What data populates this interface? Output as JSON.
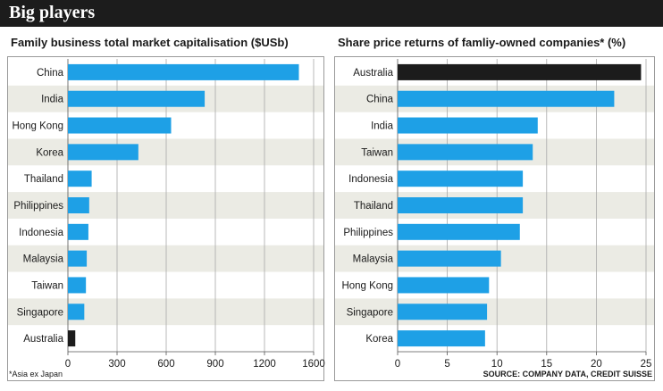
{
  "header": {
    "title": "Big players"
  },
  "footnote": "*Asia ex Japan",
  "source": "SOURCE: COMPANY DATA, CREDIT SUISSE",
  "colors": {
    "bar": "#1ea0e6",
    "highlight": "#1c1c1c",
    "stripe": "#ebebe4",
    "grid": "#a8a8a8"
  },
  "chart_data": [
    {
      "type": "bar",
      "orientation": "horizontal",
      "title": "Family business total market capitalisation ($USb)",
      "categories": [
        "China",
        "India",
        "Hong Kong",
        "Korea",
        "Thailand",
        "Philippines",
        "Indonesia",
        "Malaysia",
        "Taiwan",
        "Singapore",
        "Australia"
      ],
      "values": [
        1410,
        835,
        630,
        430,
        145,
        130,
        125,
        115,
        110,
        100,
        45
      ],
      "highlight": "Australia",
      "xlim": [
        0,
        1500
      ],
      "xticks": [
        0,
        300,
        600,
        900,
        1200,
        1600
      ],
      "grid": true
    },
    {
      "type": "bar",
      "orientation": "horizontal",
      "title": "Share price returns of famliy-owned companies* (%)",
      "categories": [
        "Australia",
        "China",
        "India",
        "Taiwan",
        "Indonesia",
        "Thailand",
        "Philippines",
        "Malaysia",
        "Hong Kong",
        "Singapore",
        "Korea"
      ],
      "values": [
        24.5,
        21.8,
        14.1,
        13.6,
        12.6,
        12.6,
        12.3,
        10.4,
        9.2,
        9.0,
        8.8
      ],
      "highlight": "Australia",
      "xlim": [
        0,
        25
      ],
      "xticks": [
        0,
        5,
        10,
        15,
        20,
        25
      ],
      "grid": true
    }
  ]
}
